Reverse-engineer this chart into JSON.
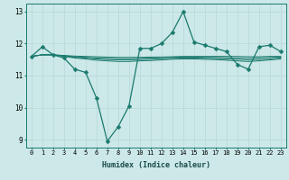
{
  "xlabel": "Humidex (Indice chaleur)",
  "xlim_min": -0.5,
  "xlim_max": 23.5,
  "ylim_min": 8.75,
  "ylim_max": 13.25,
  "yticks": [
    9,
    10,
    11,
    12,
    13
  ],
  "xticks": [
    0,
    1,
    2,
    3,
    4,
    5,
    6,
    7,
    8,
    9,
    10,
    11,
    12,
    13,
    14,
    15,
    16,
    17,
    18,
    19,
    20,
    21,
    22,
    23
  ],
  "bg_color": "#cce8e8",
  "grid_color": "#b8d8d8",
  "line_color": "#1a7a6e",
  "main_line": [
    11.6,
    11.9,
    11.65,
    11.55,
    11.2,
    11.1,
    10.3,
    8.95,
    9.4,
    10.05,
    11.85,
    11.85,
    12.0,
    12.35,
    13.0,
    12.05,
    11.95,
    11.85,
    11.75,
    11.35,
    11.2,
    11.9,
    11.95,
    11.75
  ],
  "fan_lines": [
    [
      11.6,
      11.65,
      11.65,
      11.63,
      11.61,
      11.6,
      11.59,
      11.58,
      11.57,
      11.57,
      11.57,
      11.58,
      11.58,
      11.59,
      11.6,
      11.6,
      11.6,
      11.6,
      11.6,
      11.6,
      11.59,
      11.59,
      11.6,
      11.6
    ],
    [
      11.6,
      11.65,
      11.65,
      11.62,
      11.59,
      11.57,
      11.55,
      11.54,
      11.53,
      11.53,
      11.54,
      11.55,
      11.56,
      11.57,
      11.58,
      11.58,
      11.57,
      11.57,
      11.56,
      11.55,
      11.54,
      11.55,
      11.57,
      11.58
    ],
    [
      11.6,
      11.65,
      11.65,
      11.61,
      11.57,
      11.55,
      11.52,
      11.5,
      11.49,
      11.49,
      11.5,
      11.51,
      11.53,
      11.54,
      11.55,
      11.55,
      11.54,
      11.53,
      11.52,
      11.51,
      11.49,
      11.5,
      11.52,
      11.55
    ],
    [
      11.6,
      11.65,
      11.65,
      11.6,
      11.55,
      11.52,
      11.48,
      11.46,
      11.44,
      11.44,
      11.46,
      11.47,
      11.49,
      11.51,
      11.52,
      11.52,
      11.51,
      11.5,
      11.48,
      11.46,
      11.44,
      11.46,
      11.49,
      11.52
    ]
  ],
  "marker_size": 2.5,
  "linewidth": 0.9,
  "fan_linewidth": 0.7,
  "tick_fontsize": 5.0,
  "xlabel_fontsize": 6.0
}
